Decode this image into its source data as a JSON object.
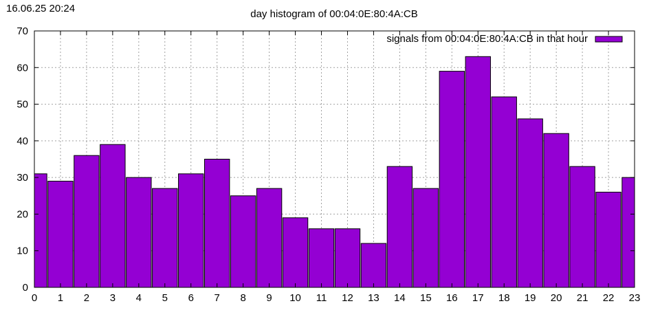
{
  "timestamp": "16.06.25 20:24",
  "chart_data": {
    "type": "bar",
    "title": "day histogram of 00:04:0E:80:4A:CB",
    "xlabel": "",
    "ylabel": "",
    "categories": [
      "0",
      "1",
      "2",
      "3",
      "4",
      "5",
      "6",
      "7",
      "8",
      "9",
      "10",
      "11",
      "12",
      "13",
      "14",
      "15",
      "16",
      "17",
      "18",
      "19",
      "20",
      "21",
      "22",
      "23"
    ],
    "series": [
      {
        "name": "signals from 00:04:0E:80:4A:CB in that hour",
        "values": [
          31,
          29,
          36,
          39,
          30,
          27,
          31,
          35,
          25,
          27,
          19,
          16,
          16,
          12,
          33,
          27,
          59,
          63,
          52,
          46,
          42,
          33,
          26,
          30
        ]
      }
    ],
    "ylim": [
      0,
      70
    ],
    "yticks": [
      0,
      10,
      20,
      30,
      40,
      50,
      60,
      70
    ],
    "grid": true,
    "legend_position": "top-right",
    "bar_color": "#9400d3"
  }
}
